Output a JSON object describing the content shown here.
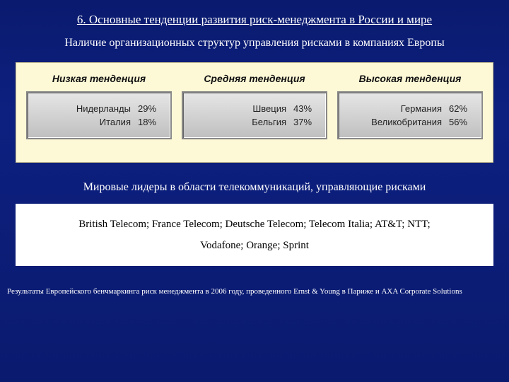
{
  "title": "6. Основные тенденции развития риск-менеджмента в России и мире",
  "subtitle": "Наличие организационных структур управления рисками в компаниях Европы",
  "infographic": {
    "background_color": "#fdf8d6",
    "box_gradient_top": "#e6e6e6",
    "box_gradient_bottom": "#bfbfbf",
    "box_border_color": "#888888",
    "header_font": "Arial italic bold 14pt",
    "row_font": "Arial 13pt",
    "columns": [
      {
        "header": "Низкая тенденция",
        "rows": [
          {
            "label": "Нидерланды",
            "value": "29%"
          },
          {
            "label": "Италия",
            "value": "18%"
          }
        ]
      },
      {
        "header": "Средняя тенденция",
        "rows": [
          {
            "label": "Швеция",
            "value": "43%"
          },
          {
            "label": "Бельгия",
            "value": "37%"
          }
        ]
      },
      {
        "header": "Высокая тенденция",
        "rows": [
          {
            "label": "Германия",
            "value": "62%"
          },
          {
            "label": "Великобритания",
            "value": "56%"
          }
        ]
      }
    ]
  },
  "leaders_title": "Мировые лидеры в области телекоммуникаций, управляющие рисками",
  "leaders_line1": "British Telecom;  France Telecom;  Deutsche Telecom;  Telecom Italia;  AT&T;  NTT;",
  "leaders_line2": "Vodafone;  Orange;  Sprint",
  "footnote": "Результаты Европейского бенчмаркинга риск менеджмента в 2006 году, проведенного Ernst & Young в Париже и AXA Corporate Solutions",
  "colors": {
    "slide_bg_top": "#0a1a6e",
    "slide_bg_mid": "#0d2080",
    "text_white": "#ffffff",
    "leaders_box_bg": "#ffffff"
  }
}
